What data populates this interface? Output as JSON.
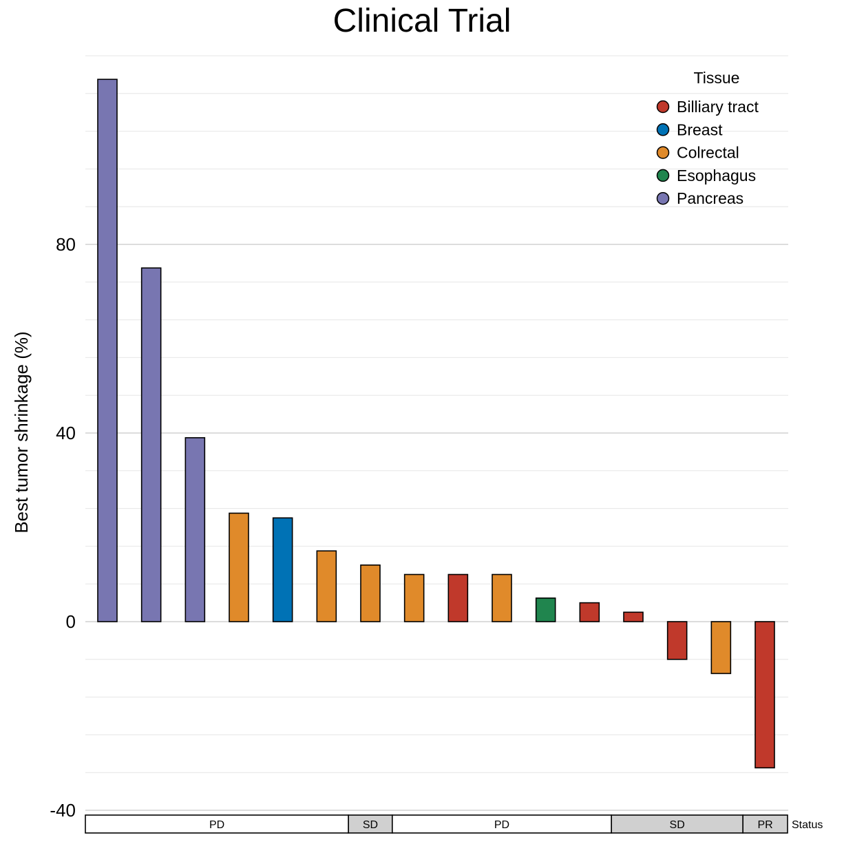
{
  "chart_data": {
    "type": "bar",
    "title": "Clinical Trial",
    "xlabel": "",
    "ylabel": "Best tumor shrinkage (%)",
    "ylim": [
      -40,
      120
    ],
    "yticks": [
      -40,
      0,
      40,
      80
    ],
    "grid": true,
    "legend": {
      "title": "Tissue",
      "placement": "top-right",
      "entries": [
        {
          "name": "Billiary tract",
          "color": "#C0392B"
        },
        {
          "name": "Breast",
          "color": "#0072B5"
        },
        {
          "name": "Colrectal",
          "color": "#E08A2A"
        },
        {
          "name": "Esophagus",
          "color": "#20854E"
        },
        {
          "name": "Pancreas",
          "color": "#7876B1"
        }
      ]
    },
    "bars": [
      {
        "value": 115,
        "tissue": "Pancreas"
      },
      {
        "value": 75,
        "tissue": "Pancreas"
      },
      {
        "value": 39,
        "tissue": "Pancreas"
      },
      {
        "value": 23,
        "tissue": "Colrectal"
      },
      {
        "value": 22,
        "tissue": "Breast"
      },
      {
        "value": 15,
        "tissue": "Colrectal"
      },
      {
        "value": 12,
        "tissue": "Colrectal"
      },
      {
        "value": 10,
        "tissue": "Colrectal"
      },
      {
        "value": 10,
        "tissue": "Billiary tract"
      },
      {
        "value": 10,
        "tissue": "Colrectal"
      },
      {
        "value": 5,
        "tissue": "Esophagus"
      },
      {
        "value": 4,
        "tissue": "Billiary tract"
      },
      {
        "value": 2,
        "tissue": "Billiary tract"
      },
      {
        "value": -8,
        "tissue": "Billiary tract"
      },
      {
        "value": -11,
        "tissue": "Colrectal"
      },
      {
        "value": -31,
        "tissue": "Billiary tract"
      }
    ],
    "status_track": {
      "label": "Status",
      "segments": [
        {
          "label": "PD",
          "start": 0,
          "end": 5,
          "color": "#FFFFFF"
        },
        {
          "label": "SD",
          "start": 6,
          "end": 6,
          "color": "#D0D0D0"
        },
        {
          "label": "PD",
          "start": 7,
          "end": 11,
          "color": "#FFFFFF"
        },
        {
          "label": "SD",
          "start": 12,
          "end": 14,
          "color": "#D0D0D0"
        },
        {
          "label": "PR",
          "start": 15,
          "end": 15,
          "color": "#D0D0D0"
        }
      ]
    }
  }
}
